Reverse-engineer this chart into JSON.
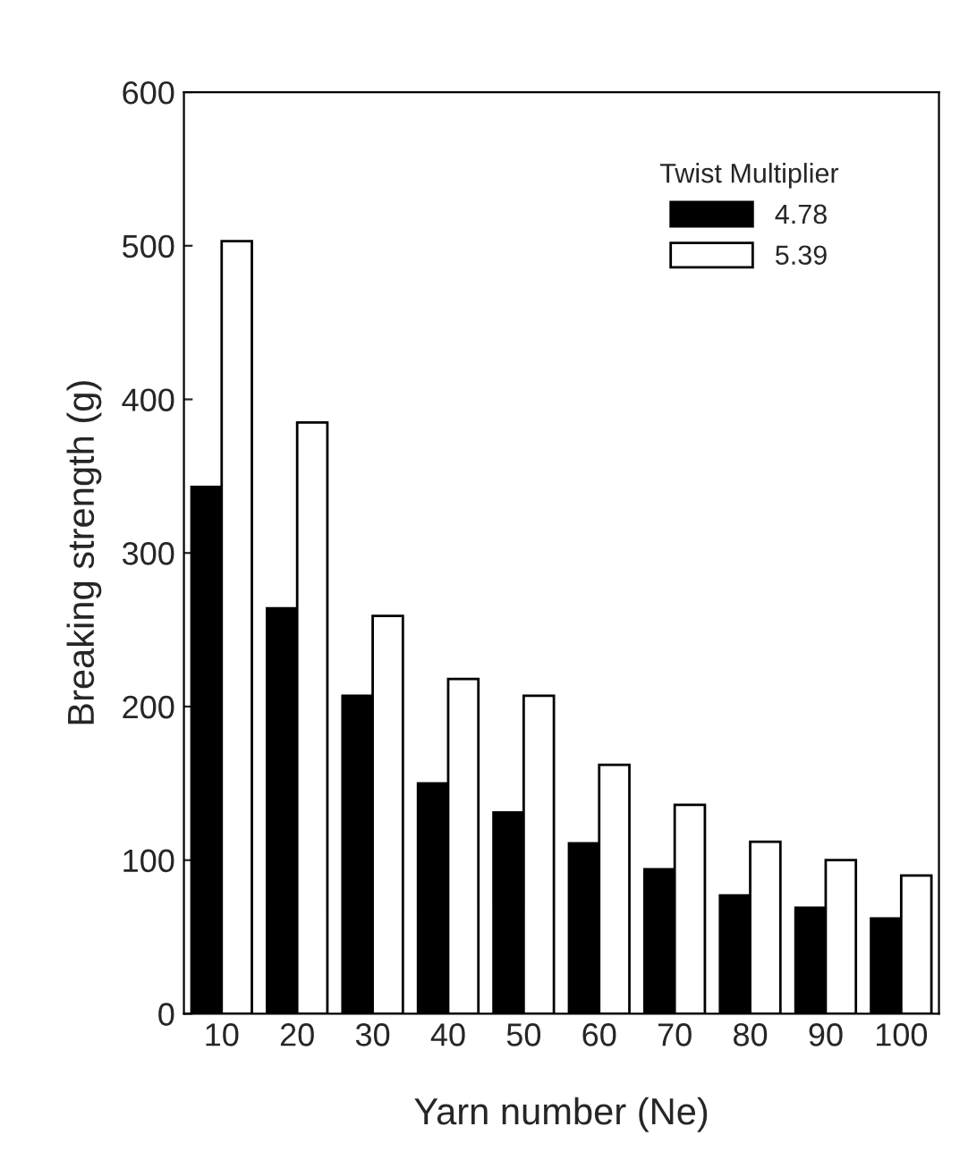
{
  "chart_data": {
    "type": "bar",
    "xlabel": "Yarn number (Ne)",
    "ylabel": "Breaking strength (g)",
    "categories": [
      "10",
      "20",
      "30",
      "40",
      "50",
      "60",
      "70",
      "80",
      "90",
      "100"
    ],
    "series": [
      {
        "name": "4.78",
        "color": "#000000",
        "values": [
          343,
          264,
          207,
          150,
          131,
          111,
          94,
          77,
          69,
          62
        ]
      },
      {
        "name": "5.39",
        "color": "#ffffff",
        "values": [
          503,
          385,
          259,
          218,
          207,
          162,
          136,
          112,
          100,
          90
        ]
      }
    ],
    "legend_title": "Twist Multiplier",
    "legend": "top right",
    "ylim": [
      0,
      600
    ],
    "yticks": [
      0,
      100,
      200,
      300,
      400,
      500,
      600
    ],
    "grid": false
  }
}
